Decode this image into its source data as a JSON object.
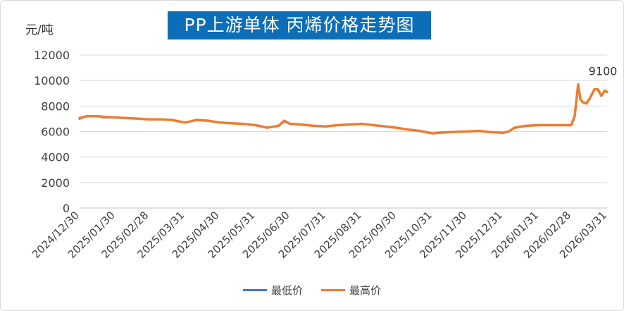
{
  "title": "PP上游单体 丙烯价格走势图",
  "y_unit": "元/吨",
  "legend": [
    {
      "label": "最低价",
      "color": "#4472c4"
    },
    {
      "label": "最高价",
      "color": "#ed7d31"
    }
  ],
  "chart_data": {
    "type": "line",
    "title": "PP上游单体 丙烯价格走势图",
    "ylabel": "元/吨",
    "ylim": [
      0,
      12000
    ],
    "yticks": [
      0,
      2000,
      4000,
      6000,
      8000,
      10000,
      12000
    ],
    "xtick_labels": [
      "2024/12/30",
      "2025/01/30",
      "2025/02/28",
      "2025/03/31",
      "2025/04/30",
      "2025/05/31",
      "2025/06/30",
      "2025/07/31",
      "2025/08/31",
      "2025/09/30",
      "2025/10/31",
      "2025/11/30",
      "2025/12/31",
      "2026/01/31",
      "2026/02/28",
      "2026/03/31"
    ],
    "grid": {
      "horizontal": true,
      "vertical": false
    },
    "legend_position": "bottom",
    "annotations": [
      {
        "text": "9100",
        "x": "2026/03/31",
        "y": 9100
      }
    ],
    "x": [
      "2024/12/30",
      "2025/01/05",
      "2025/01/15",
      "2025/01/20",
      "2025/01/30",
      "2025/02/10",
      "2025/02/20",
      "2025/02/28",
      "2025/03/10",
      "2025/03/20",
      "2025/03/31",
      "2025/04/10",
      "2025/04/20",
      "2025/04/30",
      "2025/05/10",
      "2025/05/20",
      "2025/05/31",
      "2025/06/10",
      "2025/06/20",
      "2025/06/25",
      "2025/06/30",
      "2025/07/10",
      "2025/07/20",
      "2025/07/31",
      "2025/08/10",
      "2025/08/20",
      "2025/08/31",
      "2025/09/10",
      "2025/09/20",
      "2025/09/30",
      "2025/10/10",
      "2025/10/20",
      "2025/10/31",
      "2025/11/05",
      "2025/11/15",
      "2025/11/30",
      "2025/12/10",
      "2025/12/20",
      "2025/12/31",
      "2026/01/05",
      "2026/01/10",
      "2026/01/20",
      "2026/01/31",
      "2026/02/10",
      "2026/02/20",
      "2026/02/28",
      "2026/03/03",
      "2026/03/06",
      "2026/03/08",
      "2026/03/10",
      "2026/03/13",
      "2026/03/16",
      "2026/03/20",
      "2026/03/23",
      "2026/03/26",
      "2026/03/29",
      "2026/03/31"
    ],
    "series": [
      {
        "name": "最低价",
        "color": "#4472c4",
        "values": [
          7000,
          7200,
          7200,
          7100,
          7100,
          7050,
          7000,
          6950,
          6950,
          6900,
          6700,
          6900,
          6850,
          6700,
          6650,
          6600,
          6500,
          6300,
          6450,
          6800,
          6600,
          6550,
          6450,
          6400,
          6500,
          6550,
          6600,
          6500,
          6400,
          6300,
          6150,
          6050,
          5850,
          5900,
          5950,
          6000,
          6050,
          5950,
          5900,
          6000,
          6300,
          6450,
          6500,
          6500,
          6500,
          6500,
          7200,
          9700,
          8500,
          8300,
          8200,
          8600,
          9300,
          9300,
          8800,
          9200,
          9100
        ]
      },
      {
        "name": "最高价",
        "color": "#ed7d31",
        "values": [
          7050,
          7200,
          7200,
          7150,
          7100,
          7050,
          7000,
          6950,
          6950,
          6900,
          6700,
          6900,
          6850,
          6700,
          6650,
          6600,
          6500,
          6300,
          6450,
          6850,
          6600,
          6550,
          6450,
          6400,
          6500,
          6550,
          6600,
          6500,
          6400,
          6300,
          6150,
          6050,
          5850,
          5900,
          5950,
          6000,
          6050,
          5950,
          5900,
          6000,
          6300,
          6450,
          6500,
          6500,
          6500,
          6500,
          7200,
          9700,
          8500,
          8300,
          8200,
          8600,
          9300,
          9300,
          8800,
          9200,
          9100
        ]
      }
    ]
  }
}
